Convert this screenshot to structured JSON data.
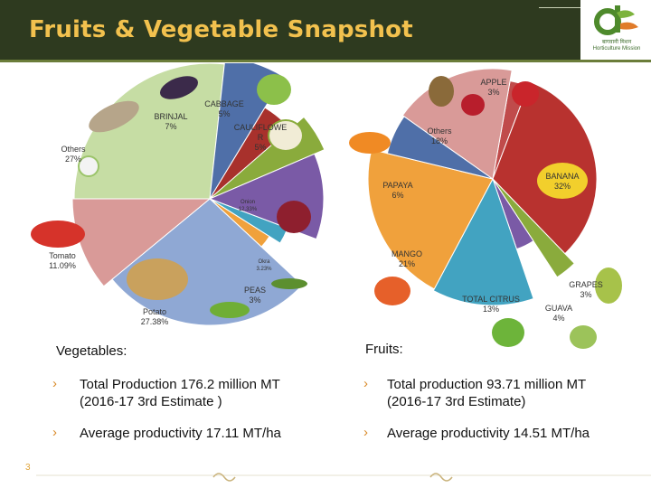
{
  "slide": {
    "title": "Fruits & Vegetable Snapshot",
    "page_number": "3",
    "logo_text_line1": "बागवानी मिशन",
    "logo_text_line2": "Horticulture Mission"
  },
  "vegetables_chart": {
    "labels": [
      {
        "name": "brinjal",
        "text1": "BRINJAL",
        "text2": "7%"
      },
      {
        "name": "cabbage",
        "text1": "CABBAGE",
        "text2": "5%"
      },
      {
        "name": "cauliflower",
        "text1": "CAULIFLOWE",
        "text2": "R",
        "text3": "5%"
      },
      {
        "name": "others-veg",
        "text1": "Others",
        "text2": "27%"
      },
      {
        "name": "onion",
        "text1": "Onion",
        "text2": "12.33%"
      },
      {
        "name": "tomato",
        "text1": "Tomato",
        "text2": "11.09%"
      },
      {
        "name": "okra",
        "text1": "Okra",
        "text2": "3.23%"
      },
      {
        "name": "peas",
        "text1": "PEAS",
        "text2": "3%"
      },
      {
        "name": "potato",
        "text1": "Potato",
        "text2": "27.38%"
      }
    ]
  },
  "chart_data": [
    {
      "type": "pie",
      "categories": [
        "Others",
        "BRINJAL",
        "CABBAGE",
        "CAULIFLOWER",
        "Onion",
        "Okra",
        "PEAS",
        "Potato",
        "Tomato"
      ],
      "values": [
        27,
        7,
        5,
        5,
        12.33,
        3.23,
        3,
        27.38,
        11.09
      ],
      "colors": [
        "#c6dda4",
        "#4f6fa8",
        "#a8312c",
        "#8aab3c",
        "#7a5aa6",
        "#42a3c1",
        "#f0a13c",
        "#8fa8d4",
        "#d99a98"
      ]
    },
    {
      "type": "pie",
      "categories": [
        "APPLE",
        "BANANA",
        "GRAPES",
        "GUAVA",
        "TOTAL CITRUS",
        "MANGO",
        "PAPAYA",
        "Others"
      ],
      "values": [
        3,
        32,
        3,
        4,
        13,
        21,
        6,
        18
      ],
      "colors": [
        "#c04b4b",
        "#b8322f",
        "#8aab3c",
        "#7a5aa6",
        "#42a3c1",
        "#f0a13c",
        "#4f6fa8",
        "#d99a98"
      ]
    }
  ],
  "fruits_chart": {
    "labels": [
      {
        "name": "apple",
        "text1": "APPLE",
        "text2": "3%"
      },
      {
        "name": "others-fruit",
        "text1": "Others",
        "text2": "18%"
      },
      {
        "name": "banana",
        "text1": "BANANA",
        "text2": "32%"
      },
      {
        "name": "papaya",
        "text1": "PAPAYA",
        "text2": "6%"
      },
      {
        "name": "mango",
        "text1": "MANGO",
        "text2": "21%"
      },
      {
        "name": "citrus",
        "text1": "TOTAL CITRUS",
        "text2": "13%"
      },
      {
        "name": "grapes",
        "text1": "GRAPES",
        "text2": "3%"
      },
      {
        "name": "guava",
        "text1": "GUAVA",
        "text2": "4%"
      }
    ]
  },
  "vegetables": {
    "heading": "Vegetables:",
    "bullets": [
      {
        "line1": "Total Production 176.2 million MT",
        "line2": "(2016-17 3rd Estimate )"
      },
      {
        "line1": "Average productivity 17.11 MT/ha"
      }
    ]
  },
  "fruits": {
    "heading": "Fruits:",
    "bullets": [
      {
        "line1": "Total production 93.71 million MT",
        "line2": "(2016-17 3rd Estimate)"
      },
      {
        "line1": "Average productivity 14.51 MT/ha"
      }
    ]
  }
}
